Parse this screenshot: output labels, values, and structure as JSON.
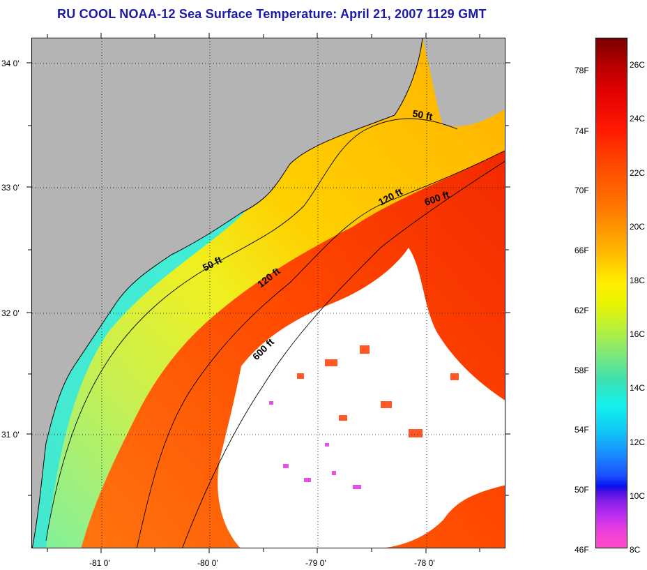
{
  "title": "RU COOL  NOAA-12  Sea Surface Temperature:  April 21, 2007 1129 GMT",
  "map": {
    "lat_labels": [
      "34 0'",
      "33 0'",
      "32 0'",
      "31 0'"
    ],
    "lon_labels": [
      "-81 0'",
      "-80 0'",
      "-79 0'",
      "-78 0'"
    ],
    "contour_labels": [
      "50 ft",
      "120 ft",
      "600 ft",
      "50 ft",
      "120 ft",
      "600 ft"
    ],
    "colors": {
      "land": "#b4b4b4",
      "cloud": "#ffffff",
      "coastline": "#000000"
    }
  },
  "colorbar": {
    "fahrenheit_labels": [
      "78F",
      "74F",
      "70F",
      "66F",
      "62F",
      "58F",
      "54F",
      "50F",
      "46F"
    ],
    "celsius_labels": [
      "26C",
      "24C",
      "22C",
      "20C",
      "18C",
      "16C",
      "14C",
      "12C",
      "10C",
      "8C"
    ]
  }
}
